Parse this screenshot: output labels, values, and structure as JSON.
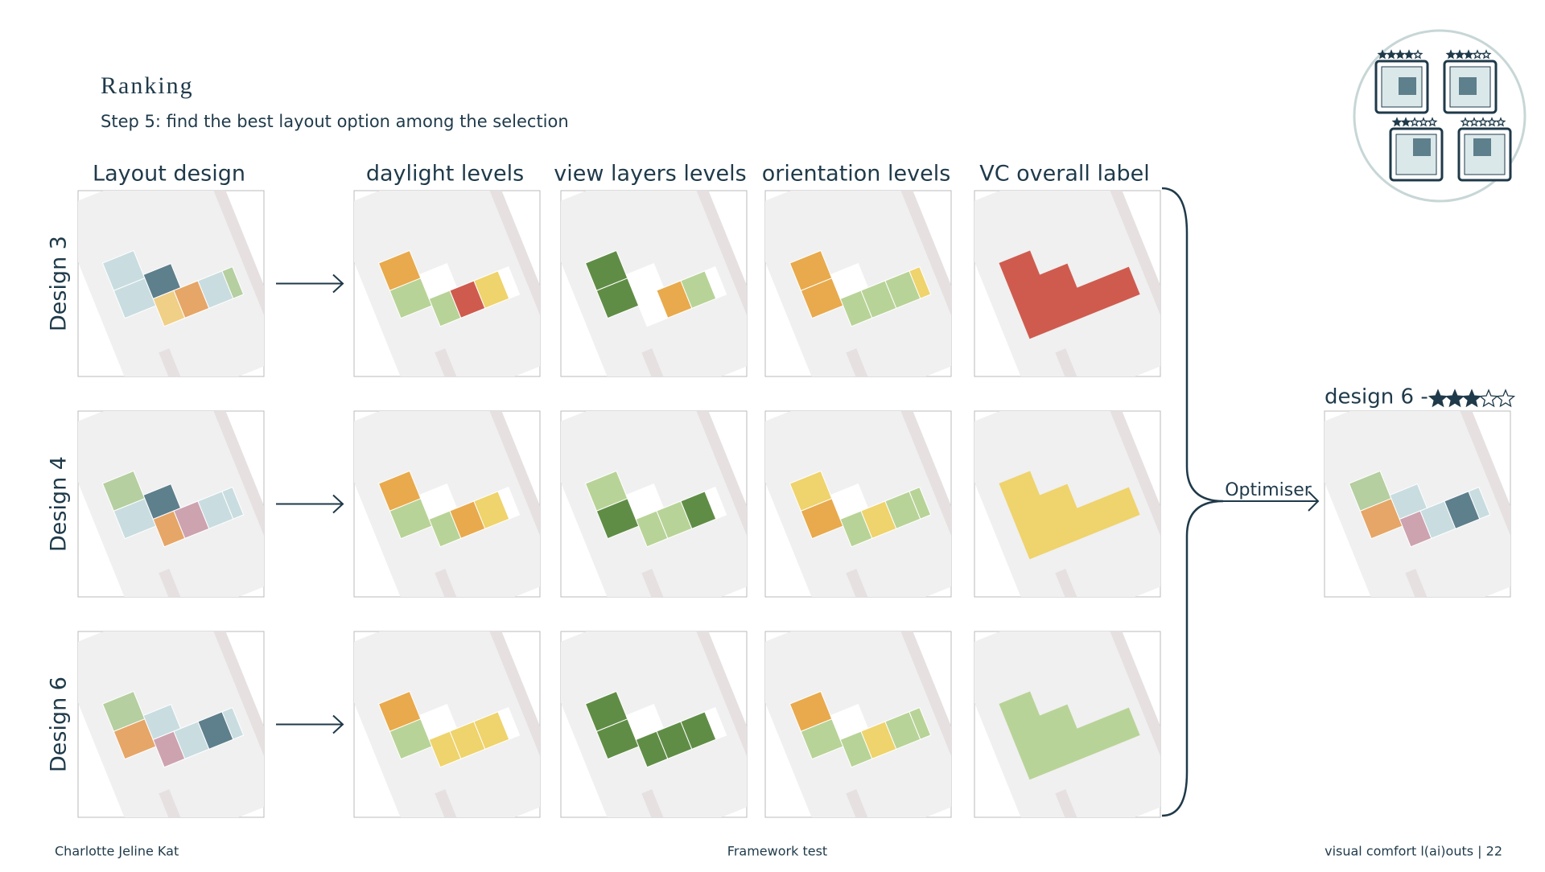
{
  "header": {
    "title": "Ranking",
    "subtitle": "Step 5: find the best layout option among the selection"
  },
  "columns": [
    "Layout design",
    "daylight levels",
    "view layers levels",
    "orientation levels",
    "VC overall label"
  ],
  "rows": [
    "Design 3",
    "Design 4",
    "Design 6"
  ],
  "optimiser": "Optimiser",
  "result": {
    "label": "design 6 -",
    "rating": 3,
    "max_rating": 5
  },
  "icon_ratings": [
    4,
    3,
    2,
    0
  ],
  "footer": {
    "author": "Charlotte Jeline Kat",
    "topic": "Framework test",
    "page": "visual comfort l(ai)outs | 22"
  }
}
